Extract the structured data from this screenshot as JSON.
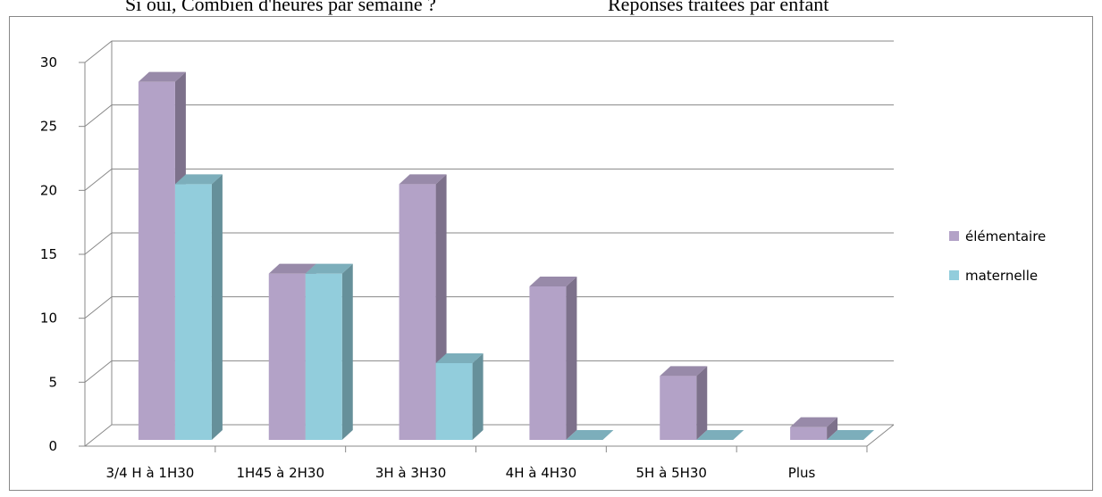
{
  "chart_data": {
    "type": "bar3d",
    "title": "Si oui, Combien d'heures par semaine ?",
    "subtitle": "Réponses traitées par enfant",
    "categories": [
      "3/4 H à 1H30",
      "1H45 à 2H30",
      "3H à 3H30",
      "4H à 4H30",
      "5H à 5H30",
      "Plus"
    ],
    "series": [
      {
        "name": "élémentaire",
        "color": "#b3a2c7",
        "values": [
          28,
          13,
          20,
          12,
          5,
          1
        ]
      },
      {
        "name": "maternelle",
        "color": "#92cddc",
        "values": [
          20,
          13,
          6,
          0,
          0,
          0
        ]
      }
    ],
    "ylim": [
      0,
      30
    ],
    "yticks": [
      0,
      5,
      10,
      15,
      20,
      25,
      30
    ],
    "grid": true,
    "legend": "right"
  }
}
